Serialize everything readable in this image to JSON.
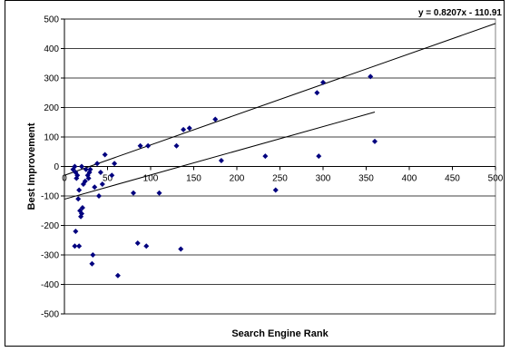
{
  "chart_data": {
    "type": "scatter",
    "xlabel": "Search Engine Rank",
    "ylabel": "Best Improvement",
    "xlim": [
      0,
      500
    ],
    "ylim": [
      -500,
      500
    ],
    "x_ticks": [
      0,
      50,
      100,
      150,
      200,
      250,
      300,
      350,
      400,
      450,
      500
    ],
    "y_ticks": [
      500,
      400,
      300,
      200,
      100,
      0,
      -100,
      -200,
      -300,
      -400,
      -500
    ],
    "grid": "horizontal",
    "legend": "none",
    "equation_label": "y = 0.8207x - 110.91",
    "marker_color": "#00007f",
    "points": [
      [
        10,
        -10
      ],
      [
        12,
        0
      ],
      [
        13,
        -20
      ],
      [
        14,
        -40
      ],
      [
        15,
        -30
      ],
      [
        16,
        -110
      ],
      [
        17,
        -80
      ],
      [
        18,
        -150
      ],
      [
        19,
        -170
      ],
      [
        20,
        -160
      ],
      [
        20,
        0
      ],
      [
        21,
        -140
      ],
      [
        22,
        -60
      ],
      [
        24,
        -50
      ],
      [
        25,
        -10
      ],
      [
        27,
        -30
      ],
      [
        28,
        -40
      ],
      [
        29,
        -20
      ],
      [
        30,
        -10
      ],
      [
        32,
        -330
      ],
      [
        33,
        -300
      ],
      [
        35,
        -70
      ],
      [
        38,
        10
      ],
      [
        40,
        -100
      ],
      [
        42,
        -20
      ],
      [
        44,
        -60
      ],
      [
        47,
        40
      ],
      [
        55,
        -30
      ],
      [
        58,
        10
      ],
      [
        12,
        -270
      ],
      [
        13,
        -220
      ],
      [
        17,
        -270
      ],
      [
        62,
        -370
      ],
      [
        80,
        -90
      ],
      [
        85,
        -260
      ],
      [
        88,
        70
      ],
      [
        95,
        -270
      ],
      [
        97,
        70
      ],
      [
        110,
        -90
      ],
      [
        130,
        70
      ],
      [
        135,
        -280
      ],
      [
        138,
        125
      ],
      [
        145,
        130
      ],
      [
        175,
        160
      ],
      [
        182,
        20
      ],
      [
        233,
        35
      ],
      [
        245,
        -80
      ],
      [
        293,
        250
      ],
      [
        295,
        35
      ],
      [
        300,
        285
      ],
      [
        355,
        305
      ],
      [
        360,
        85
      ]
    ],
    "trendlines": [
      {
        "x": [
          0,
          500
        ],
        "y": [
          -30,
          485
        ]
      },
      {
        "x": [
          0,
          360
        ],
        "y": [
          -110.91,
          184.5
        ]
      }
    ]
  }
}
